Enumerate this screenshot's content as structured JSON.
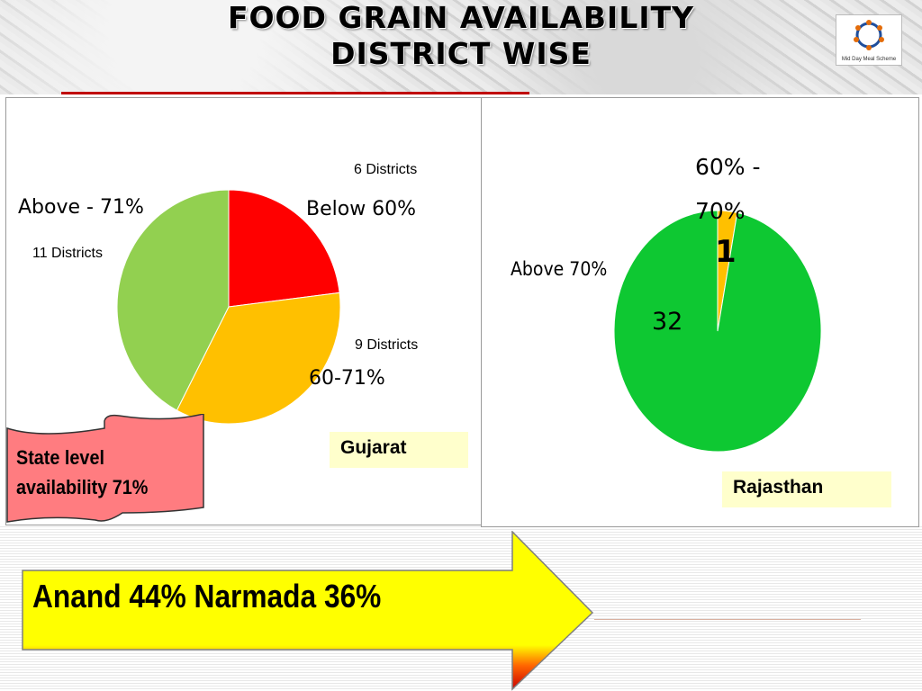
{
  "title": {
    "line1": "FOOD GRAIN AVAILABILITY",
    "line2": "DISTRICT WISE"
  },
  "logo": {
    "icon": "mid-day-meal-logo-icon",
    "text": "Mid Day Meal Scheme"
  },
  "gujarat": {
    "box_label": "Gujarat",
    "labels": {
      "below_districts": "6 Districts",
      "below_range": "Below 60%",
      "above_prefix": "Above -  71%",
      "above_districts": "11 Districts",
      "mid_districts": "9 Districts",
      "mid_range": "60-71%"
    },
    "state_note_line1": "State level",
    "state_note_line2": "availability 71%"
  },
  "rajasthan": {
    "box_label": "Rajasthan",
    "labels": {
      "mid_range_line1": "60% -",
      "mid_range_line2": "70%",
      "mid_value": "1",
      "above_label": "Above  70%",
      "above_value": "32"
    }
  },
  "arrow_text": "Anand 44% Narmada 36%",
  "colors": {
    "red": "#ff0000",
    "amber": "#ffc000",
    "light_green": "#92d050",
    "green": "#0ec832",
    "yellow": "#ffff00"
  },
  "chart_data": [
    {
      "type": "pie",
      "title": "",
      "categories": [
        "Below 60%",
        "60-71%",
        "Above 71%"
      ],
      "values": [
        6,
        9,
        11
      ],
      "colors": [
        "#ff0000",
        "#ffc000",
        "#92d050"
      ]
    },
    {
      "type": "pie",
      "title": "",
      "categories": [
        "60% - 70%",
        "Above 70%"
      ],
      "values": [
        1,
        32
      ],
      "colors": [
        "#ffc000",
        "#0ec832"
      ]
    }
  ]
}
